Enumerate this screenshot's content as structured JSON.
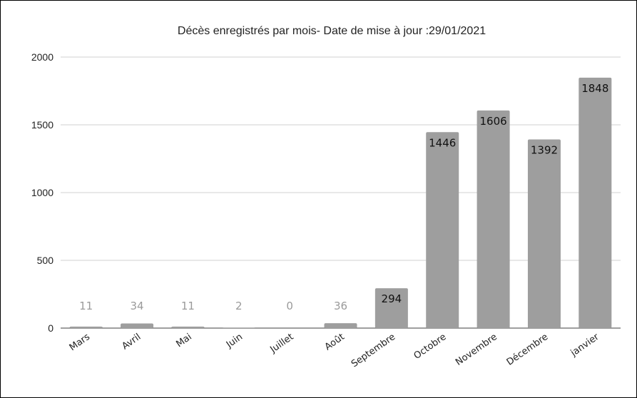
{
  "chart_data": {
    "type": "bar",
    "title": "Décès enregistrés par mois-  Date de mise à jour :29/01/2021",
    "xlabel": "",
    "ylabel": "",
    "categories": [
      "Mars",
      "Avril",
      "Mai",
      "Juin",
      "Juillet",
      "Août",
      "Septembre",
      "Octobre",
      "Novembre",
      "Décembre",
      "janvier"
    ],
    "values": [
      11,
      34,
      11,
      2,
      0,
      36,
      294,
      1446,
      1606,
      1392,
      1848
    ],
    "data_labels": [
      "11",
      "34",
      "11",
      "2",
      "0",
      "36",
      "294",
      "1446",
      "1606",
      "1392",
      "1848"
    ],
    "ylim": [
      0,
      2000
    ],
    "yticks": [
      0,
      500,
      1000,
      1500,
      2000
    ],
    "ytick_labels": [
      "0",
      "500",
      "1000",
      "1500",
      "2000"
    ],
    "grid": true,
    "legend": "none",
    "colors": {
      "bar": "#9e9e9e",
      "grid": "#d0d0d0",
      "label_inside": "#111111",
      "label_outside": "#9a9a9a"
    }
  }
}
